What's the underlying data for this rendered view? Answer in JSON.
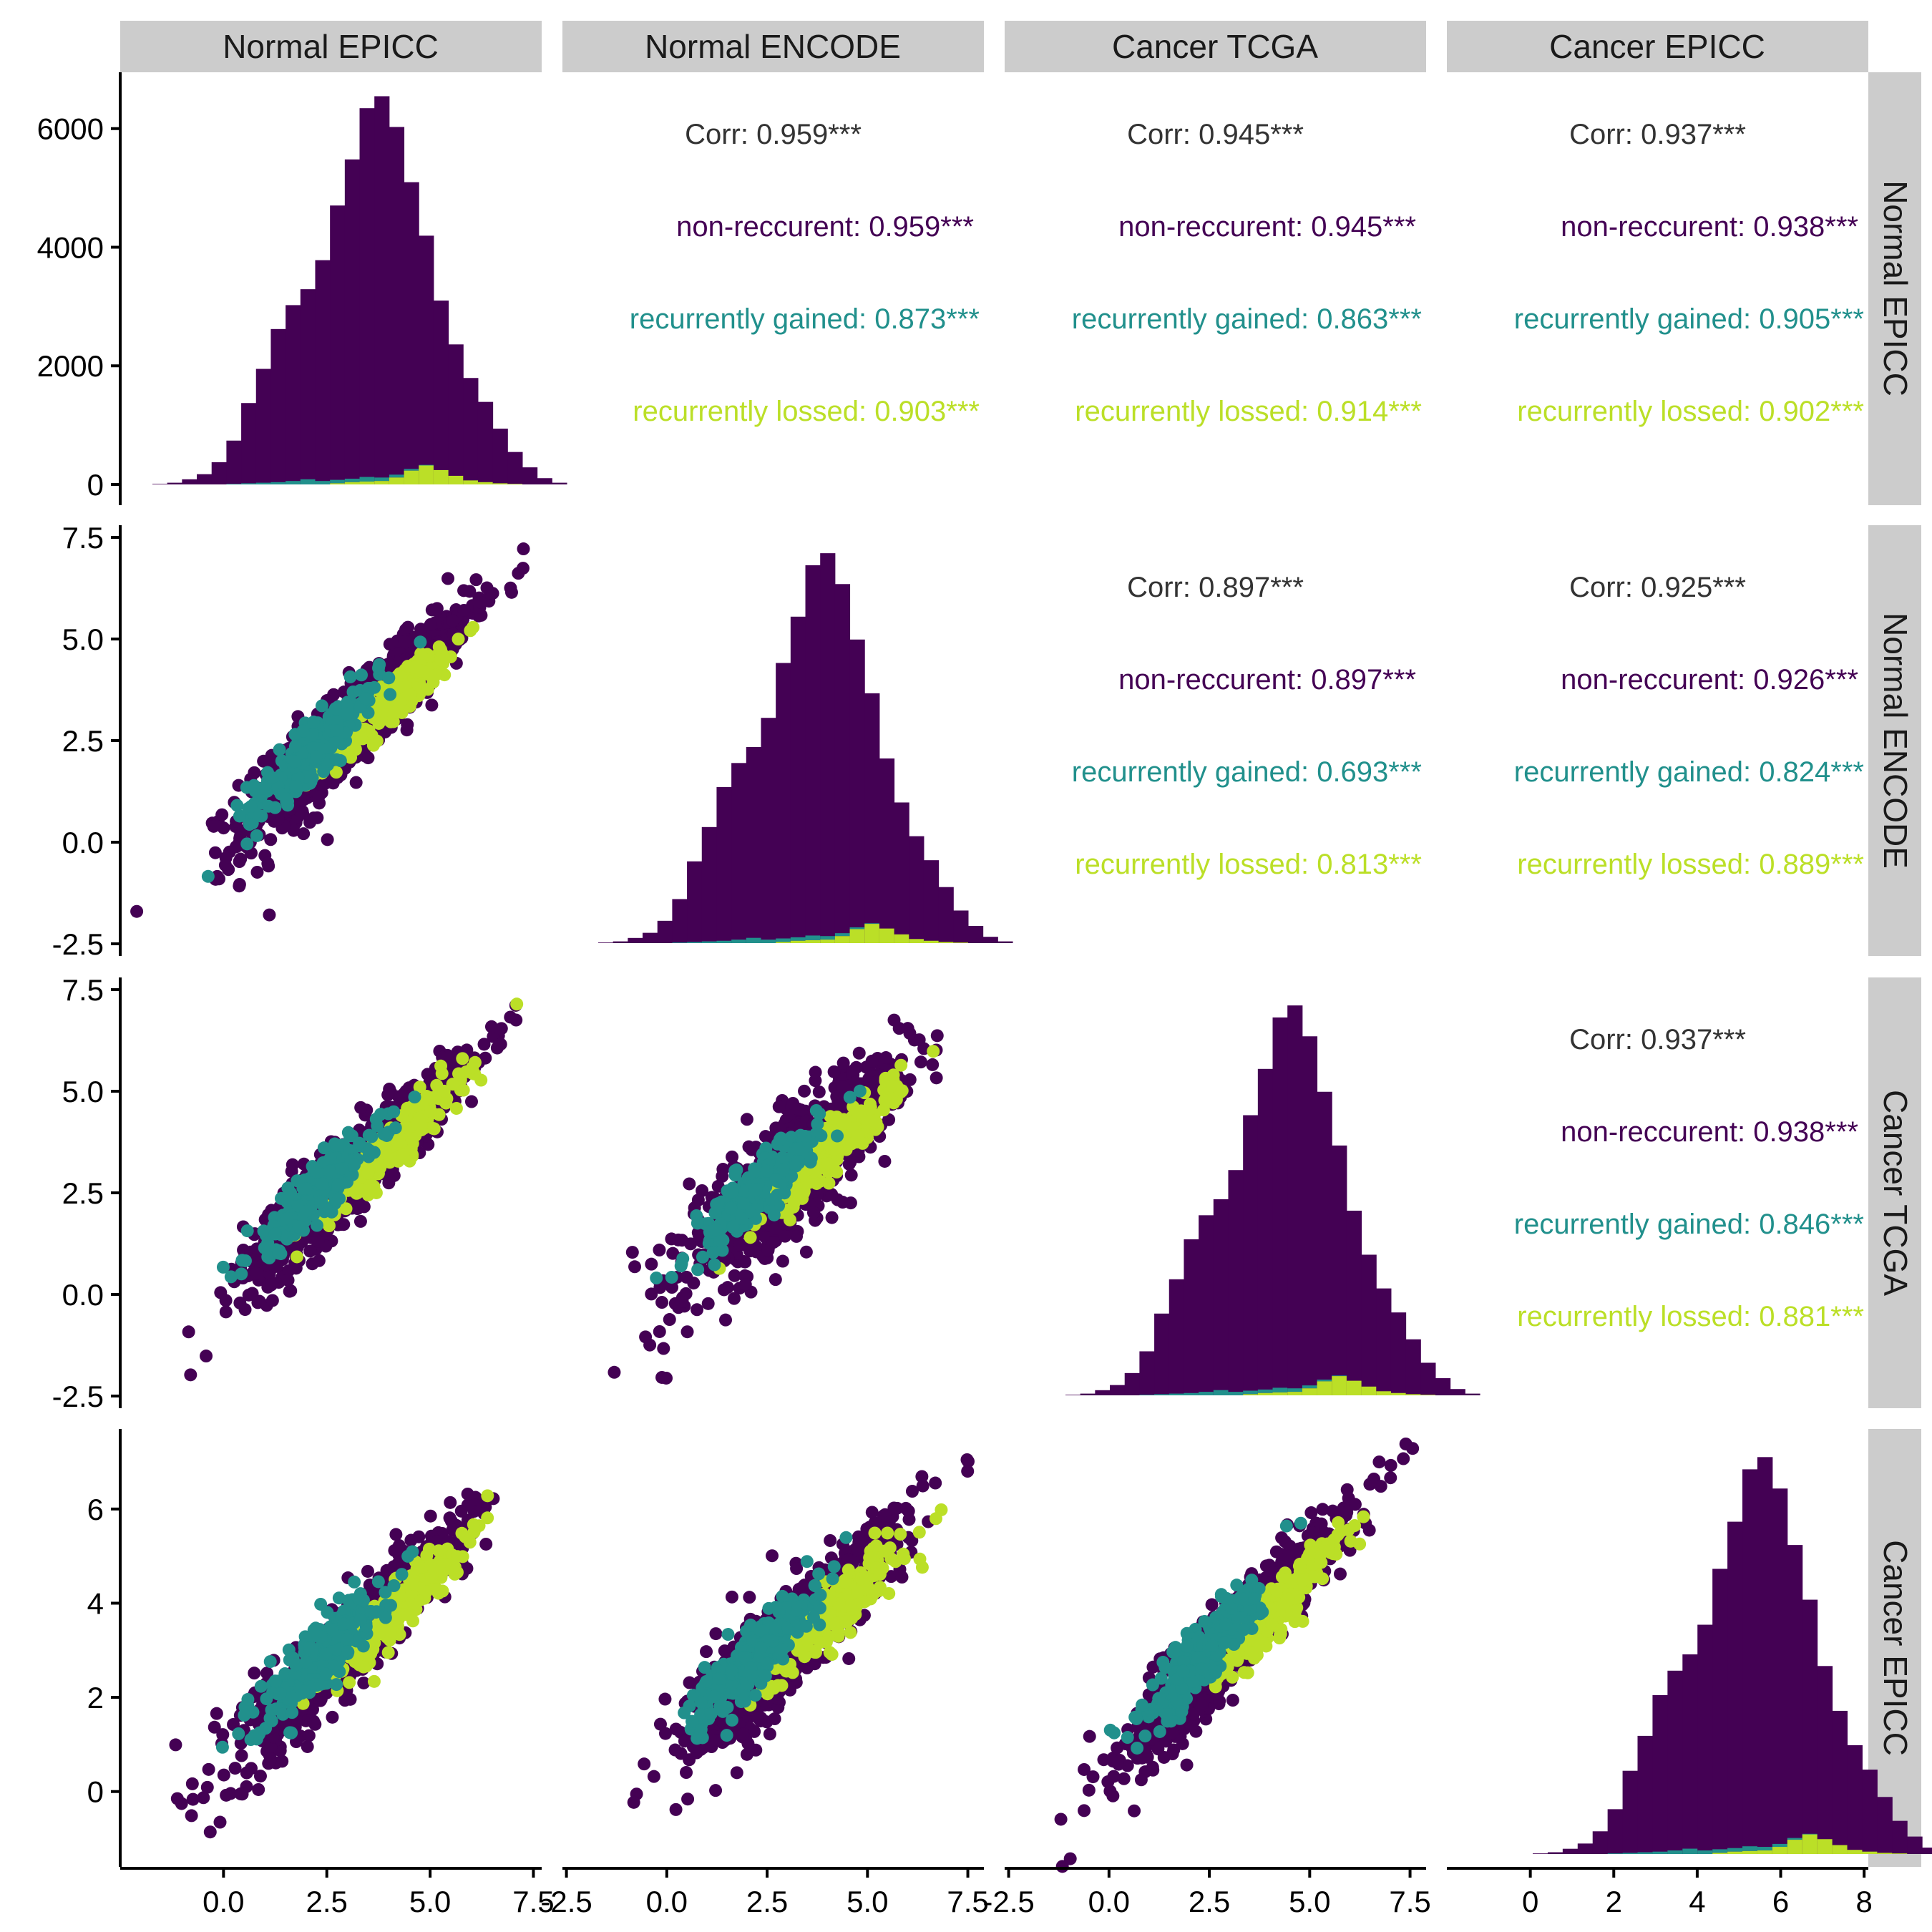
{
  "chart_data": {
    "type": "scatter",
    "title": "",
    "variables": [
      "Normal EPICC",
      "Normal ENCODE",
      "Cancer TCGA",
      "Cancer EPICC"
    ],
    "groups": [
      {
        "name": "non-reccurent",
        "color": "#440154"
      },
      {
        "name": "recurrently gained",
        "color": "#21908C"
      },
      {
        "name": "recurrently lossed",
        "color": "#BBDF27"
      }
    ],
    "corr_color": "#333333",
    "axes": {
      "x_ticks": [
        [
          "0.0",
          "2.5",
          "5.0",
          "7.5"
        ],
        [
          "-2.5",
          "0.0",
          "2.5",
          "5.0",
          "7.5"
        ],
        [
          "-2.5",
          "0.0",
          "2.5",
          "5.0",
          "7.5"
        ],
        [
          "0",
          "2",
          "4",
          "6",
          "8"
        ]
      ],
      "x_tick_values": [
        [
          0,
          2.5,
          5,
          7.5
        ],
        [
          -2.5,
          0,
          2.5,
          5,
          7.5
        ],
        [
          -2.5,
          0,
          2.5,
          5,
          7.5
        ],
        [
          0,
          2,
          4,
          6,
          8
        ]
      ],
      "x_ranges": [
        [
          -2.5,
          7.7
        ],
        [
          -2.6,
          7.9
        ],
        [
          -2.6,
          7.9
        ],
        [
          -2.0,
          8.1
        ]
      ],
      "y_ticks": [
        [
          "0",
          "2000",
          "4000",
          "6000"
        ],
        [
          "-2.5",
          "0.0",
          "2.5",
          "5.0",
          "7.5"
        ],
        [
          "-2.5",
          "0.0",
          "2.5",
          "5.0",
          "7.5"
        ],
        [
          "0",
          "2",
          "4",
          "6"
        ]
      ],
      "y_tick_values": [
        [
          0,
          2000,
          4000,
          6000
        ],
        [
          -2.5,
          0,
          2.5,
          5,
          7.5
        ],
        [
          -2.5,
          0,
          2.5,
          5,
          7.5
        ],
        [
          0,
          2,
          4,
          6
        ]
      ],
      "y_ranges": [
        [
          -350,
          6950
        ],
        [
          -2.8,
          7.8
        ],
        [
          -2.8,
          7.8
        ],
        [
          -1.6,
          7.7
        ]
      ]
    },
    "correlations": [
      {
        "row": 0,
        "col": 1,
        "corr": "Corr: 0.959***",
        "non_recurrent": "non-reccurent: 0.959***",
        "gained": "recurrently gained: 0.873***",
        "lossed": "recurrently lossed: 0.903***"
      },
      {
        "row": 0,
        "col": 2,
        "corr": "Corr: 0.945***",
        "non_recurrent": "non-reccurent: 0.945***",
        "gained": "recurrently gained: 0.863***",
        "lossed": "recurrently lossed: 0.914***"
      },
      {
        "row": 0,
        "col": 3,
        "corr": "Corr: 0.937***",
        "non_recurrent": "non-reccurent: 0.938***",
        "gained": "recurrently gained: 0.905***",
        "lossed": "recurrently lossed: 0.902***"
      },
      {
        "row": 1,
        "col": 2,
        "corr": "Corr: 0.897***",
        "non_recurrent": "non-reccurent: 0.897***",
        "gained": "recurrently gained: 0.693***",
        "lossed": "recurrently lossed: 0.813***"
      },
      {
        "row": 1,
        "col": 3,
        "corr": "Corr: 0.925***",
        "non_recurrent": "non-reccurent: 0.926***",
        "gained": "recurrently gained: 0.824***",
        "lossed": "recurrently lossed: 0.889***"
      },
      {
        "row": 2,
        "col": 3,
        "corr": "Corr: 0.937***",
        "non_recurrent": "non-reccurent: 0.938***",
        "gained": "recurrently gained: 0.846***",
        "lossed": "recurrently lossed: 0.881***"
      }
    ],
    "histograms": {
      "bin_start": -1.75,
      "bin_width": 0.3,
      "non_recurrent_counts": [
        10,
        30,
        90,
        180,
        390,
        760,
        1410,
        2000,
        2690,
        3090,
        3340,
        3880,
        4820,
        5610,
        6480,
        6700,
        6110,
        5040,
        4030,
        2980,
        2310,
        1800,
        1410,
        960,
        560,
        300,
        110,
        30
      ],
      "gained_counts": [
        0,
        0,
        0,
        0,
        0,
        10,
        20,
        30,
        40,
        60,
        90,
        60,
        60,
        60,
        80,
        60,
        50,
        30,
        10,
        0,
        0,
        0,
        0,
        0,
        0,
        0,
        0,
        0
      ],
      "lossed_counts": [
        0,
        0,
        0,
        0,
        0,
        0,
        0,
        0,
        0,
        0,
        0,
        0,
        20,
        40,
        50,
        60,
        120,
        240,
        330,
        250,
        150,
        70,
        40,
        20,
        10,
        0,
        0,
        0
      ]
    },
    "scatter_panels": [
      {
        "row": 1,
        "col": 0,
        "x": "Normal EPICC",
        "y": "Normal ENCODE"
      },
      {
        "row": 2,
        "col": 0,
        "x": "Normal EPICC",
        "y": "Cancer TCGA"
      },
      {
        "row": 2,
        "col": 1,
        "x": "Normal ENCODE",
        "y": "Cancer TCGA"
      },
      {
        "row": 3,
        "col": 0,
        "x": "Normal EPICC",
        "y": "Cancer EPICC"
      },
      {
        "row": 3,
        "col": 1,
        "x": "Normal ENCODE",
        "y": "Cancer EPICC"
      },
      {
        "row": 3,
        "col": 2,
        "x": "Cancer TCGA",
        "y": "Cancer EPICC"
      }
    ],
    "grid": false,
    "legend": "none"
  }
}
